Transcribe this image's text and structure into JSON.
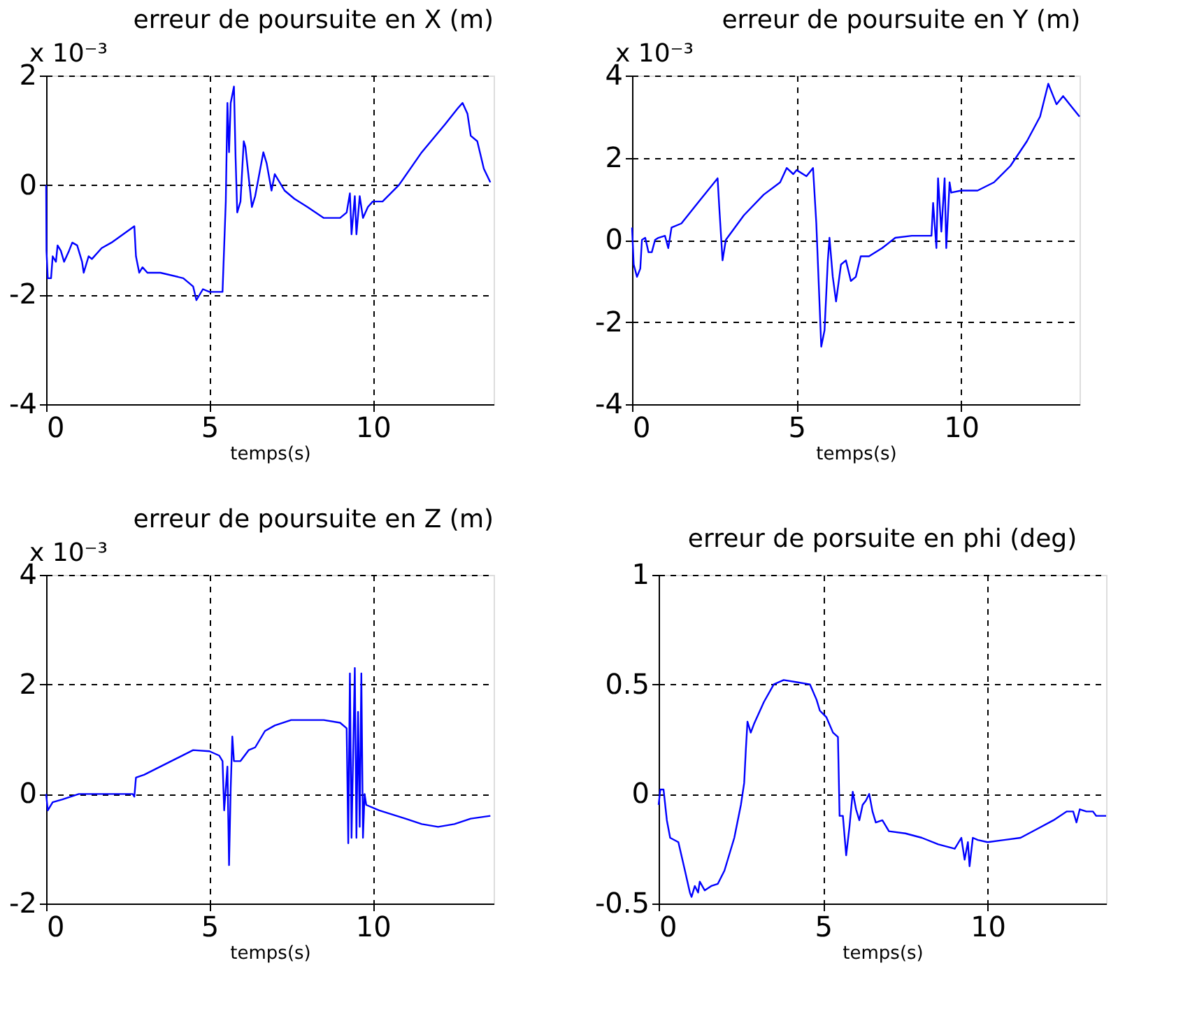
{
  "chart_data": [
    {
      "type": "line",
      "title": "erreur de poursuite en X (m)",
      "xlabel": "temps(s)",
      "annotations": [
        "x 10⁻³"
      ],
      "xlim": [
        0,
        13.7
      ],
      "ylim": [
        -4,
        2
      ],
      "xticks": [
        0,
        5,
        10
      ],
      "yticks": [
        -4,
        -2,
        0,
        2
      ],
      "grid": true,
      "x": [
        0,
        0.01,
        0.05,
        0.15,
        0.2,
        0.3,
        0.35,
        0.45,
        0.55,
        0.7,
        0.8,
        0.95,
        1.1,
        1.15,
        1.3,
        1.4,
        1.7,
        2.0,
        2.7,
        2.75,
        2.85,
        2.95,
        3.1,
        3.5,
        4.2,
        4.5,
        4.6,
        4.8,
        5.0,
        5.4,
        5.5,
        5.55,
        5.6,
        5.65,
        5.75,
        5.8,
        5.85,
        5.95,
        6.05,
        6.1,
        6.3,
        6.4,
        6.65,
        6.75,
        6.9,
        7.0,
        7.1,
        7.3,
        7.6,
        8.0,
        8.5,
        9.0,
        9.2,
        9.3,
        9.35,
        9.45,
        9.5,
        9.6,
        9.7,
        9.85,
        10.0,
        10.3,
        10.8,
        11.5,
        12.2,
        12.6,
        12.75,
        12.9,
        13.0,
        13.2,
        13.4,
        13.6
      ],
      "series": [
        {
          "color": "#0000ff",
          "values": [
            0,
            -1.2,
            -1.7,
            -1.7,
            -1.3,
            -1.4,
            -1.1,
            -1.2,
            -1.4,
            -1.2,
            -1.05,
            -1.1,
            -1.4,
            -1.6,
            -1.3,
            -1.35,
            -1.15,
            -1.05,
            -0.75,
            -1.3,
            -1.6,
            -1.5,
            -1.6,
            -1.6,
            -1.7,
            -1.85,
            -2.1,
            -1.9,
            -1.95,
            -1.95,
            -0.3,
            1.5,
            0.6,
            1.5,
            1.8,
            0.5,
            -0.5,
            -0.3,
            0.8,
            0.7,
            -0.4,
            -0.2,
            0.6,
            0.4,
            -0.1,
            0.2,
            0.1,
            -0.1,
            -0.25,
            -0.4,
            -0.6,
            -0.6,
            -0.5,
            -0.15,
            -0.9,
            -0.2,
            -0.9,
            -0.2,
            -0.6,
            -0.4,
            -0.3,
            -0.3,
            0,
            0.6,
            1.1,
            1.4,
            1.5,
            1.3,
            0.9,
            0.8,
            0.3,
            0.05
          ]
        }
      ]
    },
    {
      "type": "line",
      "title": "erreur de poursuite en Y (m)",
      "xlabel": "temps(s)",
      "annotations": [
        "x 10⁻³"
      ],
      "xlim": [
        0,
        13.6
      ],
      "ylim": [
        -4,
        4
      ],
      "xticks": [
        0,
        5,
        10
      ],
      "yticks": [
        -4,
        -2,
        0,
        2,
        4
      ],
      "grid": true,
      "x": [
        0,
        0.05,
        0.15,
        0.25,
        0.3,
        0.4,
        0.5,
        0.6,
        0.7,
        0.8,
        1.0,
        1.1,
        1.2,
        1.5,
        2.0,
        2.6,
        2.65,
        2.75,
        2.85,
        3.4,
        4.0,
        4.5,
        4.7,
        4.9,
        5.0,
        5.3,
        5.5,
        5.6,
        5.65,
        5.75,
        5.85,
        5.95,
        6.0,
        6.1,
        6.2,
        6.35,
        6.5,
        6.65,
        6.8,
        6.95,
        7.2,
        7.6,
        8.0,
        8.5,
        9.1,
        9.15,
        9.25,
        9.3,
        9.4,
        9.5,
        9.55,
        9.65,
        9.7,
        10.0,
        10.5,
        11.0,
        11.5,
        12.0,
        12.4,
        12.65,
        12.8,
        12.9,
        13.1,
        13.3,
        13.6
      ],
      "series": [
        {
          "color": "#0000ff",
          "values": [
            0.3,
            -0.6,
            -0.9,
            -0.7,
            0,
            0.05,
            -0.3,
            -0.3,
            0,
            0.05,
            0.1,
            -0.2,
            0.3,
            0.4,
            0.9,
            1.5,
            0.8,
            -0.5,
            0.0,
            0.6,
            1.1,
            1.4,
            1.75,
            1.6,
            1.7,
            1.55,
            1.75,
            0.4,
            -0.6,
            -2.6,
            -2.2,
            -0.5,
            0.05,
            -0.9,
            -1.5,
            -0.6,
            -0.5,
            -1.0,
            -0.9,
            -0.4,
            -0.4,
            -0.2,
            0.05,
            0.1,
            0.1,
            0.9,
            -0.2,
            1.5,
            0.2,
            1.5,
            -0.2,
            1.4,
            1.15,
            1.2,
            1.2,
            1.4,
            1.8,
            2.4,
            3.0,
            3.8,
            3.5,
            3.3,
            3.5,
            3.3,
            3.0
          ]
        }
      ]
    },
    {
      "type": "line",
      "title": "erreur de poursuite en Z (m)",
      "xlabel": "temps(s)",
      "annotations": [
        "x 10⁻³"
      ],
      "xlim": [
        0,
        13.7
      ],
      "ylim": [
        -2,
        4
      ],
      "xticks": [
        0,
        5,
        10
      ],
      "yticks": [
        -2,
        0,
        2,
        4
      ],
      "grid": true,
      "x": [
        0,
        0.05,
        0.2,
        0.5,
        1.0,
        2.65,
        2.7,
        2.75,
        3.0,
        3.5,
        4.0,
        4.5,
        5.0,
        5.3,
        5.4,
        5.45,
        5.55,
        5.6,
        5.65,
        5.7,
        5.75,
        5.95,
        6.2,
        6.4,
        6.7,
        7.0,
        7.5,
        8.0,
        8.5,
        9.0,
        9.2,
        9.25,
        9.3,
        9.35,
        9.45,
        9.5,
        9.55,
        9.6,
        9.65,
        9.7,
        9.75,
        9.8,
        10.2,
        11.0,
        11.5,
        12.0,
        12.5,
        13.0,
        13.6
      ],
      "series": [
        {
          "color": "#0000ff",
          "values": [
            0,
            -0.3,
            -0.15,
            -0.1,
            0,
            0,
            -0.05,
            0.3,
            0.35,
            0.5,
            0.65,
            0.8,
            0.78,
            0.7,
            0.6,
            -0.3,
            0.5,
            -1.3,
            0.1,
            1.05,
            0.6,
            0.6,
            0.8,
            0.85,
            1.15,
            1.25,
            1.35,
            1.35,
            1.35,
            1.3,
            1.2,
            -0.9,
            2.2,
            -0.8,
            2.3,
            -0.8,
            1.5,
            -0.6,
            2.2,
            -0.8,
            0.0,
            -0.2,
            -0.3,
            -0.45,
            -0.55,
            -0.6,
            -0.55,
            -0.45,
            -0.4
          ]
        }
      ]
    },
    {
      "type": "line",
      "title": "erreur de porsuite en phi (deg)",
      "xlabel": "temps(s)",
      "xlim": [
        0,
        13.6
      ],
      "ylim": [
        -0.5,
        1
      ],
      "xticks": [
        0,
        5,
        10
      ],
      "yticks": [
        -0.5,
        0,
        0.5,
        1
      ],
      "grid": true,
      "x": [
        0,
        0.05,
        0.15,
        0.25,
        0.35,
        0.6,
        0.8,
        0.95,
        1.0,
        1.1,
        1.2,
        1.25,
        1.4,
        1.6,
        1.8,
        2.0,
        2.3,
        2.5,
        2.6,
        2.65,
        2.7,
        2.8,
        2.9,
        3.2,
        3.5,
        3.8,
        4.2,
        4.6,
        4.8,
        4.9,
        5.1,
        5.3,
        5.45,
        5.5,
        5.6,
        5.7,
        5.8,
        5.9,
        6.0,
        6.1,
        6.2,
        6.3,
        6.4,
        6.5,
        6.6,
        6.8,
        7.0,
        7.5,
        8.0,
        8.5,
        9.0,
        9.2,
        9.3,
        9.4,
        9.45,
        9.55,
        9.7,
        10.0,
        10.5,
        11.0,
        11.5,
        12.0,
        12.4,
        12.6,
        12.7,
        12.8,
        13.0,
        13.2,
        13.3,
        13.6
      ],
      "series": [
        {
          "color": "#0000ff",
          "values": [
            -0.05,
            0.02,
            0.02,
            -0.12,
            -0.2,
            -0.22,
            -0.35,
            -0.45,
            -0.47,
            -0.42,
            -0.45,
            -0.4,
            -0.44,
            -0.42,
            -0.41,
            -0.35,
            -0.2,
            -0.05,
            0.05,
            0.2,
            0.33,
            0.28,
            0.32,
            0.42,
            0.5,
            0.52,
            0.51,
            0.5,
            0.43,
            0.38,
            0.35,
            0.28,
            0.26,
            -0.1,
            -0.1,
            -0.28,
            -0.15,
            0.01,
            -0.07,
            -0.12,
            -0.05,
            -0.03,
            0.0,
            -0.08,
            -0.13,
            -0.12,
            -0.17,
            -0.18,
            -0.2,
            -0.23,
            -0.25,
            -0.2,
            -0.3,
            -0.22,
            -0.33,
            -0.2,
            -0.21,
            -0.22,
            -0.21,
            -0.2,
            -0.16,
            -0.12,
            -0.08,
            -0.08,
            -0.13,
            -0.07,
            -0.08,
            -0.08,
            -0.1,
            -0.1
          ]
        }
      ]
    }
  ]
}
